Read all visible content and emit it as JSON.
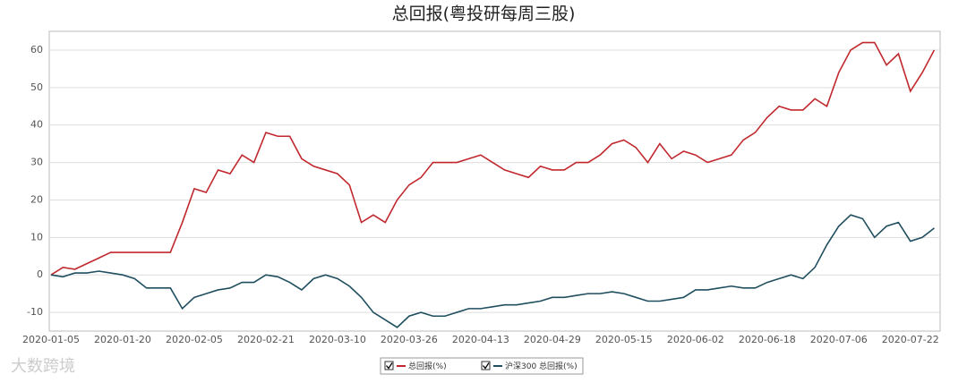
{
  "chart_data": {
    "type": "line",
    "title": "总回报(粤投研每周三股)",
    "categories": [
      "2020-01-05",
      null,
      null,
      null,
      null,
      null,
      "2020-01-20",
      null,
      null,
      null,
      null,
      null,
      "2020-02-05",
      null,
      null,
      null,
      null,
      null,
      "2020-02-21",
      null,
      null,
      null,
      null,
      null,
      "2020-03-10",
      null,
      null,
      null,
      null,
      null,
      "2020-03-26",
      null,
      null,
      null,
      null,
      null,
      "2020-04-13",
      null,
      null,
      null,
      null,
      null,
      "2020-04-29",
      null,
      null,
      null,
      null,
      null,
      "2020-05-15",
      null,
      null,
      null,
      null,
      null,
      "2020-06-02",
      null,
      null,
      null,
      null,
      null,
      "2020-06-18",
      null,
      null,
      null,
      null,
      null,
      "2020-07-06",
      null,
      null,
      null,
      null,
      null,
      "2020-07-22",
      null,
      null
    ],
    "series": [
      {
        "name": "总回报(%)",
        "color": "#c0282d",
        "values": [
          0,
          2,
          1.5,
          3,
          4.5,
          6,
          6,
          6,
          6,
          6,
          6,
          14,
          23,
          22,
          28,
          27,
          32,
          30,
          38,
          37,
          37,
          31,
          29,
          28,
          27,
          24,
          14,
          16,
          14,
          20,
          24,
          26,
          30,
          30,
          30,
          31,
          32,
          30,
          28,
          27,
          26,
          29,
          28,
          28,
          30,
          30,
          32,
          35,
          36,
          34,
          30,
          35,
          31,
          33,
          32,
          30,
          31,
          32,
          36,
          38,
          42,
          45,
          44,
          44,
          47,
          45,
          54,
          60,
          62,
          62,
          56,
          59,
          49,
          54,
          60
        ]
      },
      {
        "name": "沪深300 总回报(%)",
        "color": "#1f4e5f",
        "values": [
          0,
          -0.5,
          0.5,
          0.5,
          1,
          0.5,
          0,
          -1,
          -3.5,
          -3.5,
          -3.5,
          -9,
          -6,
          -5,
          -4,
          -3.5,
          -2,
          -2,
          0,
          -0.5,
          -2,
          -4,
          -1,
          0,
          -1,
          -3,
          -6,
          -10,
          -12,
          -14,
          -11,
          -10,
          -11,
          -11,
          -10,
          -9,
          -9,
          -8.5,
          -8,
          -8,
          -7.5,
          -7,
          -6,
          -6,
          -5.5,
          -5,
          -5,
          -4.5,
          -5,
          -6,
          -7,
          -7,
          -6.5,
          -6,
          -4,
          -4,
          -3.5,
          -3,
          -3.5,
          -3.5,
          -2,
          -1,
          0,
          -1,
          2,
          8,
          13,
          16,
          15,
          10,
          13,
          14,
          9,
          10,
          12.5
        ]
      }
    ],
    "ylim": [
      -15,
      65
    ],
    "yticks": [
      -10,
      0,
      10,
      20,
      30,
      40,
      50,
      60
    ],
    "grid": true,
    "legend": "bottom",
    "watermark": "大数跨境"
  }
}
